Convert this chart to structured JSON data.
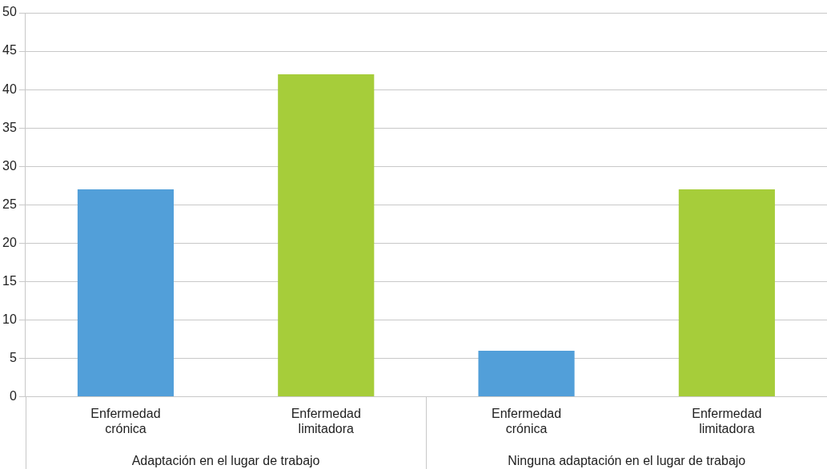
{
  "chart_data": {
    "type": "bar",
    "categories": [
      "Enfermedad crónica",
      "Enfermedad limitadora",
      "Enfermedad crónica",
      "Enfermedad limitadora"
    ],
    "values": [
      27,
      42,
      6,
      27
    ],
    "colors": [
      "#529fd9",
      "#a6cd3a",
      "#529fd9",
      "#a6cd3a"
    ],
    "ylim": [
      0,
      50
    ],
    "yticks": [
      0,
      5,
      10,
      15,
      20,
      25,
      30,
      35,
      40,
      45,
      50
    ],
    "grid": "y",
    "legend": false,
    "annotations": [
      "Adaptación en el lugar de trabajo",
      "Ninguna adaptación en el lugar de trabajo"
    ]
  }
}
